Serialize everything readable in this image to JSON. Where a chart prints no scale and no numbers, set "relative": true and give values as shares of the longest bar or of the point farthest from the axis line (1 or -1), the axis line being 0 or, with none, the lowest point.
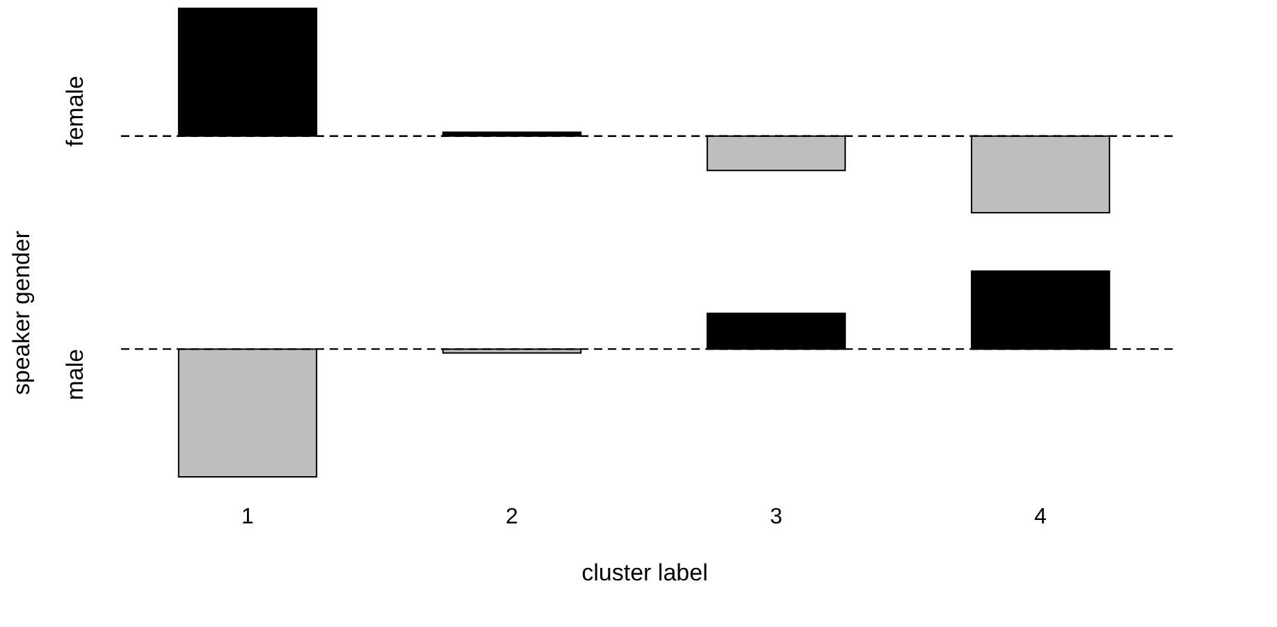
{
  "chart_data": [
    {
      "type": "bar",
      "relative": true,
      "ylabel": "female",
      "categories": [
        "1",
        "2",
        "3",
        "4"
      ],
      "tick_labels": false,
      "values": [
        1,
        0.03,
        -0.27,
        -0.6
      ],
      "colors": [
        "#000000",
        "#000000",
        "#bebebe",
        "#bebebe"
      ],
      "ref_lines": [
        {
          "axis": "y",
          "value": 0,
          "line_style": "dashed"
        }
      ],
      "annotations": [
        "speaker gender"
      ]
    },
    {
      "type": "bar",
      "relative": true,
      "ylabel": "male",
      "xlabel": "cluster label",
      "categories": [
        "1",
        "2",
        "3",
        "4"
      ],
      "tick_labels": "x",
      "values": [
        -1,
        -0.03,
        0.28,
        0.61
      ],
      "colors": [
        "#bebebe",
        "#bebebe",
        "#000000",
        "#000000"
      ],
      "ref_lines": [
        {
          "axis": "y",
          "value": 0,
          "line_style": "dashed"
        }
      ]
    }
  ]
}
